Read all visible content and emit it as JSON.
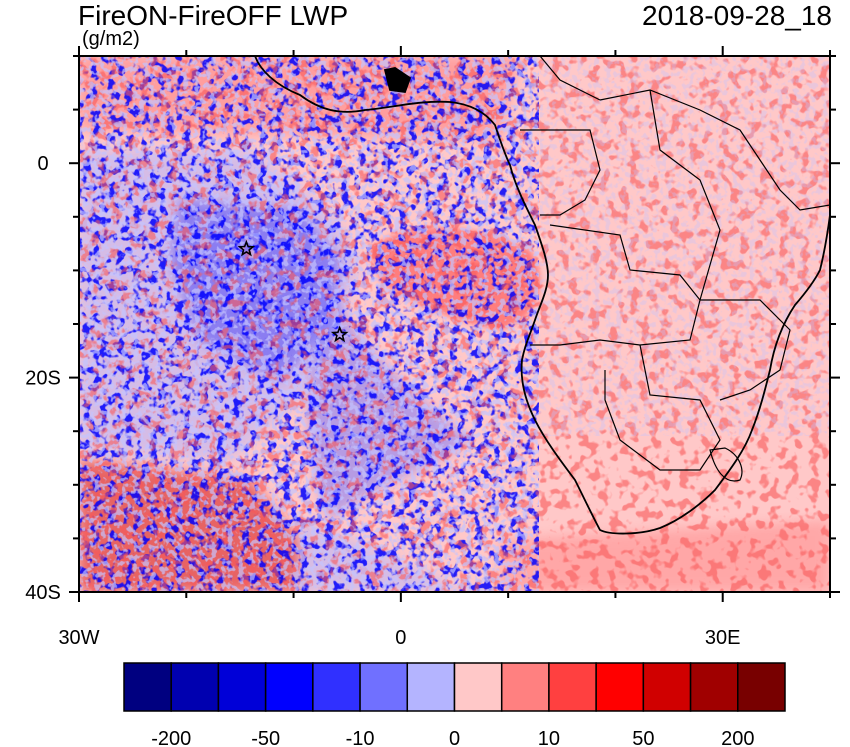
{
  "title": "FireON-FireOFF LWP",
  "units": "(g/m2)",
  "timestamp": "2018-09-28_18",
  "chart_data": {
    "type": "heatmap",
    "title": "FireON-FireOFF LWP",
    "units": "(g/m2)",
    "x_range": [
      -30,
      40
    ],
    "y_range": [
      -40,
      10
    ],
    "x_ticks": [
      {
        "value": -30,
        "label": "30W"
      },
      {
        "value": 0,
        "label": "0"
      },
      {
        "value": 30,
        "label": "30E"
      }
    ],
    "y_ticks": [
      {
        "value": 0,
        "label": "0"
      },
      {
        "value": -20,
        "label": "20S"
      },
      {
        "value": -40,
        "label": "40S"
      }
    ],
    "colorbar": {
      "colors": [
        "#000080",
        "#0000b0",
        "#0000d8",
        "#0000ff",
        "#3030ff",
        "#7070ff",
        "#b4b4ff",
        "#ffc8c8",
        "#ff8080",
        "#ff4040",
        "#ff0000",
        "#d00000",
        "#a00000",
        "#780000"
      ],
      "labels": [
        "-200",
        "-50",
        "-10",
        "0",
        "10",
        "50",
        "200"
      ]
    },
    "markers": [
      {
        "name": "star",
        "lon": -14.4,
        "lat": -8.0
      },
      {
        "name": "star",
        "lon": -5.7,
        "lat": -16.0
      }
    ]
  }
}
